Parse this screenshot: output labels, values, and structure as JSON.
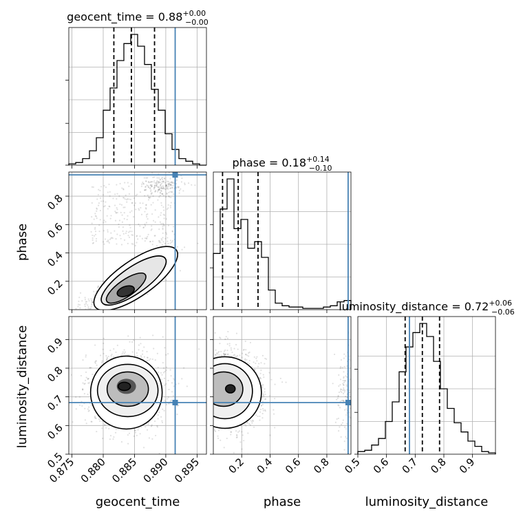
{
  "chart_data": {
    "type": "corner",
    "parameters": [
      "geocent_time",
      "phase",
      "luminosity_distance"
    ],
    "truths": {
      "geocent_time": 0.8915,
      "phase": 0.95,
      "luminosity_distance": 0.68
    },
    "truth_color": "#4682b4",
    "ranges": {
      "geocent_time": [
        0.8745,
        0.8965
      ],
      "phase": [
        0.0,
        0.97
      ],
      "luminosity_distance": [
        0.5,
        0.98
      ]
    },
    "titles": [
      {
        "param": "geocent_time",
        "label": "geocent_time = ",
        "median": "0.88",
        "plus": "+0.00",
        "minus": "−0.00"
      },
      {
        "param": "phase",
        "label": "phase = ",
        "median": "0.18",
        "plus": "+0.14",
        "minus": "−0.10"
      },
      {
        "param": "luminosity_distance",
        "label": "luminosity_distance = ",
        "median": "0.72",
        "plus": "+0.06",
        "minus": "−0.06"
      }
    ],
    "quantiles": {
      "geocent_time": [
        0.8817,
        0.8845,
        0.8882
      ],
      "phase": [
        0.065,
        0.175,
        0.315
      ],
      "luminosity_distance": [
        0.665,
        0.725,
        0.785
      ]
    },
    "histograms": {
      "geocent_time": {
        "edges": [
          0.8745,
          0.8756,
          0.8767,
          0.8778,
          0.8789,
          0.88,
          0.8811,
          0.8822,
          0.8833,
          0.8844,
          0.8855,
          0.8866,
          0.8877,
          0.8888,
          0.8899,
          0.891,
          0.8921,
          0.8932,
          0.8943,
          0.8954,
          0.8965
        ],
        "counts": [
          0.01,
          0.02,
          0.05,
          0.11,
          0.21,
          0.42,
          0.59,
          0.8,
          0.93,
          1.0,
          0.91,
          0.77,
          0.58,
          0.42,
          0.24,
          0.12,
          0.05,
          0.03,
          0.01,
          0.0
        ]
      },
      "phase": {
        "edges": [
          0.0,
          0.0485,
          0.097,
          0.1455,
          0.194,
          0.2425,
          0.291,
          0.3395,
          0.388,
          0.4365,
          0.485,
          0.5335,
          0.582,
          0.6305,
          0.679,
          0.7275,
          0.776,
          0.8245,
          0.873,
          0.9215,
          0.97
        ],
        "counts": [
          0.43,
          0.77,
          1.0,
          0.62,
          0.69,
          0.47,
          0.52,
          0.4,
          0.15,
          0.05,
          0.03,
          0.02,
          0.02,
          0.01,
          0.01,
          0.01,
          0.02,
          0.03,
          0.06,
          0.07
        ]
      },
      "luminosity_distance": {
        "edges": [
          0.5,
          0.524,
          0.548,
          0.572,
          0.596,
          0.62,
          0.644,
          0.668,
          0.692,
          0.716,
          0.74,
          0.764,
          0.788,
          0.812,
          0.836,
          0.86,
          0.884,
          0.908,
          0.932,
          0.956,
          0.98
        ],
        "counts": [
          0.02,
          0.03,
          0.07,
          0.12,
          0.25,
          0.4,
          0.63,
          0.82,
          0.93,
          1.0,
          0.9,
          0.71,
          0.5,
          0.35,
          0.24,
          0.17,
          0.1,
          0.06,
          0.02,
          0.01
        ]
      }
    },
    "ticks": {
      "geocent_time": {
        "values": [
          0.875,
          0.88,
          0.885,
          0.89,
          0.895
        ],
        "labels": [
          "0.875",
          "0.880",
          "0.885",
          "0.890",
          "0.895"
        ]
      },
      "phase": {
        "values": [
          0.2,
          0.4,
          0.6,
          0.8
        ],
        "labels": [
          "0.2",
          "0.4",
          "0.6",
          "0.8"
        ]
      },
      "luminosity_distance": {
        "values": [
          0.5,
          0.6,
          0.7,
          0.8,
          0.9
        ],
        "labels": [
          "0.5",
          "0.6",
          "0.7",
          "0.8",
          "0.9"
        ]
      }
    },
    "axis_labels": {
      "geocent_time": "geocent_time",
      "phase": "phase",
      "luminosity_distance": "luminosity_distance"
    },
    "density_2d": {
      "phase_vs_geocent_time": {
        "center": [
          0.8836,
          0.13
        ],
        "correlated": true,
        "secondary_cluster_center": [
          0.8895,
          0.88
        ]
      },
      "luminosity_distance_vs_geocent_time": {
        "center": [
          0.8837,
          0.725
        ]
      },
      "luminosity_distance_vs_phase": {
        "center": [
          0.12,
          0.728
        ],
        "secondary_cluster_x": 0.93
      }
    },
    "grid": true
  }
}
